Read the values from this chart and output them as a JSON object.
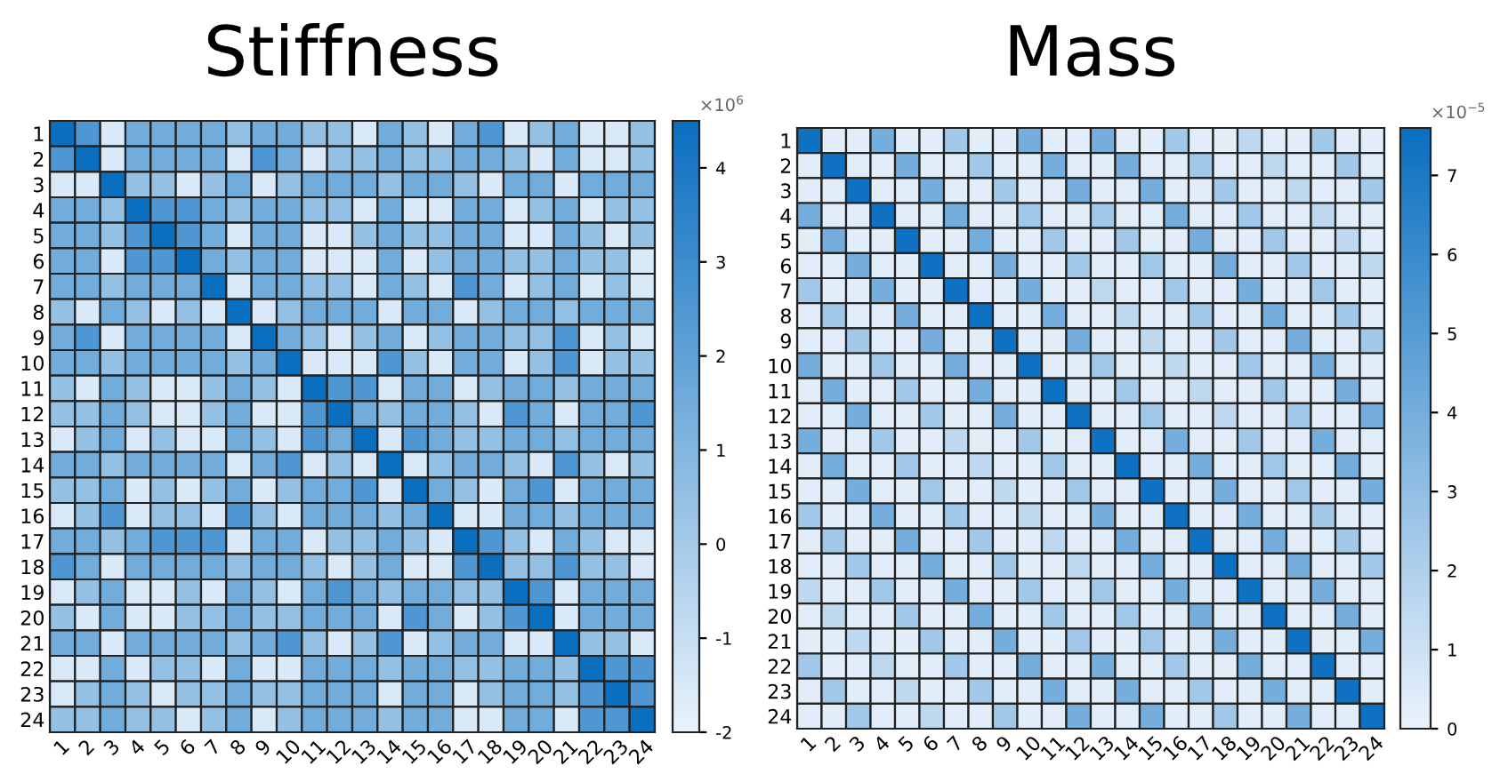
{
  "chart_data": [
    {
      "type": "heatmap",
      "title": "Stiffness",
      "clabel": "×10$^{6}$",
      "categories": [
        "1",
        "2",
        "3",
        "4",
        "5",
        "6",
        "7",
        "8",
        "9",
        "10",
        "11",
        "12",
        "13",
        "14",
        "15",
        "16",
        "17",
        "18",
        "19",
        "20",
        "21",
        "22",
        "23",
        "24"
      ],
      "y_categories": [
        "1",
        "2",
        "3",
        "4",
        "5",
        "6",
        "7",
        "8",
        "9",
        "10",
        "11",
        "12",
        "13",
        "14",
        "15",
        "16",
        "17",
        "18",
        "19",
        "20",
        "21",
        "22",
        "23",
        "24"
      ],
      "clim": [
        -2,
        4.5
      ],
      "cticks": [
        -2,
        -1,
        0,
        1,
        2,
        3,
        4
      ],
      "cells": [
        [
          4.5,
          2.5,
          -1.5,
          1.5,
          1.5,
          1.5,
          1.5,
          0.5,
          1.5,
          1.5,
          0.5,
          0.5,
          -1.5,
          1.5,
          0.5,
          -1.5,
          1.5,
          2.5,
          -1.5,
          0.5,
          1.5,
          -1.5,
          -1.5,
          0.5
        ],
        [
          2.5,
          4.5,
          -1.5,
          1.5,
          1.5,
          1.5,
          1.5,
          -1.5,
          2.5,
          1.5,
          -1.5,
          0.5,
          0.5,
          1.5,
          0.5,
          0.5,
          1.5,
          1.5,
          0.5,
          -1.5,
          1.5,
          -1.5,
          -1.5,
          0.5
        ],
        [
          -1.5,
          -1.5,
          4.5,
          0.5,
          0.5,
          -1.5,
          0.5,
          1.5,
          -1.5,
          0.5,
          1.5,
          1.5,
          1.5,
          0.5,
          1.5,
          1.5,
          0.5,
          -1.5,
          1.5,
          1.5,
          -1.5,
          1.5,
          1.5,
          1.5
        ],
        [
          1.5,
          1.5,
          0.5,
          4.5,
          2.5,
          2.5,
          1.5,
          0.5,
          1.5,
          1.5,
          0.5,
          0.5,
          -1.5,
          1.5,
          -1.5,
          -1.5,
          1.5,
          1.5,
          -1.5,
          0.5,
          1.5,
          -1.5,
          0.5,
          0.5
        ],
        [
          1.5,
          1.5,
          0.5,
          2.5,
          4.5,
          2.5,
          1.5,
          -1.5,
          1.5,
          1.5,
          -1.5,
          -1.5,
          0.5,
          1.5,
          0.5,
          0.5,
          1.5,
          1.5,
          -1.5,
          -1.5,
          1.5,
          0.5,
          -1.5,
          0.5
        ],
        [
          1.5,
          1.5,
          -1.5,
          2.5,
          2.5,
          4.5,
          1.5,
          0.5,
          1.5,
          1.5,
          -1.5,
          -1.5,
          -1.5,
          1.5,
          -1.5,
          0.5,
          1.5,
          1.5,
          0.5,
          0.5,
          1.5,
          0.5,
          0.5,
          -1.5
        ],
        [
          1.5,
          1.5,
          0.5,
          1.5,
          1.5,
          1.5,
          4.5,
          -1.5,
          1.5,
          1.5,
          0.5,
          0.5,
          -1.5,
          1.5,
          0.5,
          -1.5,
          2.5,
          1.5,
          -1.5,
          0.5,
          1.5,
          -1.5,
          0.5,
          -1.5
        ],
        [
          0.5,
          -1.5,
          1.5,
          0.5,
          -1.5,
          0.5,
          -1.5,
          4.5,
          -1.5,
          0.5,
          1.5,
          1.5,
          1.5,
          -1.5,
          1.5,
          1.5,
          -1.5,
          0.5,
          1.5,
          1.5,
          0.5,
          1.5,
          1.5,
          1.5
        ],
        [
          1.5,
          2.5,
          -1.5,
          1.5,
          1.5,
          1.5,
          1.5,
          -1.5,
          4.5,
          1.5,
          0.5,
          -1.5,
          0.5,
          1.5,
          -1.5,
          0.5,
          1.5,
          1.5,
          0.5,
          0.5,
          2.5,
          -1.5,
          0.5,
          -1.5
        ],
        [
          1.5,
          1.5,
          0.5,
          1.5,
          1.5,
          1.5,
          1.5,
          0.5,
          1.5,
          4.5,
          -1.5,
          -1.5,
          -1.5,
          2.5,
          0.5,
          -1.5,
          1.5,
          1.5,
          -1.5,
          0.5,
          2.5,
          -1.5,
          0.5,
          0.5
        ],
        [
          0.5,
          -1.5,
          1.5,
          0.5,
          -1.5,
          -1.5,
          0.5,
          1.5,
          0.5,
          -1.5,
          4.5,
          2.5,
          2.5,
          -1.5,
          1.5,
          1.5,
          -1.5,
          0.5,
          1.5,
          1.5,
          0.5,
          1.5,
          1.5,
          1.5
        ],
        [
          0.5,
          0.5,
          1.5,
          0.5,
          -1.5,
          -1.5,
          0.5,
          1.5,
          -1.5,
          -1.5,
          2.5,
          4.5,
          1.5,
          0.5,
          1.5,
          1.5,
          0.5,
          -1.5,
          2.5,
          1.5,
          -1.5,
          1.5,
          1.5,
          2.5
        ],
        [
          -1.5,
          0.5,
          1.5,
          -1.5,
          0.5,
          -1.5,
          -1.5,
          1.5,
          0.5,
          -1.5,
          2.5,
          1.5,
          4.5,
          -1.5,
          2.5,
          1.5,
          0.5,
          0.5,
          1.5,
          1.5,
          0.5,
          1.5,
          1.5,
          1.5
        ],
        [
          1.5,
          1.5,
          0.5,
          1.5,
          1.5,
          1.5,
          1.5,
          -1.5,
          1.5,
          2.5,
          -1.5,
          0.5,
          -1.5,
          4.5,
          -1.5,
          0.5,
          1.5,
          1.5,
          0.5,
          -1.5,
          2.5,
          0.5,
          -1.5,
          0.5
        ],
        [
          0.5,
          0.5,
          1.5,
          -1.5,
          0.5,
          -1.5,
          0.5,
          1.5,
          -1.5,
          0.5,
          1.5,
          1.5,
          2.5,
          -1.5,
          4.5,
          1.5,
          0.5,
          -1.5,
          1.5,
          2.5,
          -1.5,
          1.5,
          1.5,
          1.5
        ],
        [
          -1.5,
          0.5,
          2.5,
          -1.5,
          0.5,
          0.5,
          -1.5,
          2.5,
          0.5,
          -1.5,
          1.5,
          1.5,
          1.5,
          0.5,
          1.5,
          4.5,
          -1.5,
          -1.5,
          1.5,
          1.5,
          0.5,
          1.5,
          1.5,
          1.5
        ],
        [
          1.5,
          1.5,
          0.5,
          1.5,
          2.5,
          2.5,
          2.5,
          -1.5,
          1.5,
          1.5,
          -1.5,
          0.5,
          0.5,
          1.5,
          0.5,
          -1.5,
          4.5,
          2.5,
          0.5,
          -1.5,
          1.5,
          0.5,
          -1.5,
          -1.5
        ],
        [
          2.5,
          1.5,
          -1.5,
          1.5,
          1.5,
          1.5,
          1.5,
          0.5,
          1.5,
          1.5,
          0.5,
          -1.5,
          0.5,
          1.5,
          -1.5,
          -1.5,
          2.5,
          4.5,
          0.5,
          0.5,
          2.5,
          0.5,
          0.5,
          -1.5
        ],
        [
          -1.5,
          0.5,
          1.5,
          -1.5,
          -1.5,
          0.5,
          -1.5,
          1.5,
          0.5,
          -1.5,
          1.5,
          2.5,
          1.5,
          0.5,
          1.5,
          1.5,
          0.5,
          0.5,
          4.5,
          2.5,
          -1.5,
          1.5,
          1.5,
          1.5
        ],
        [
          0.5,
          -1.5,
          1.5,
          -1.5,
          -1.5,
          0.5,
          0.5,
          1.5,
          0.5,
          0.5,
          1.5,
          1.5,
          1.5,
          -1.5,
          2.5,
          1.5,
          -1.5,
          0.5,
          2.5,
          4.5,
          -1.5,
          1.5,
          1.5,
          1.5
        ],
        [
          1.5,
          1.5,
          -1.5,
          1.5,
          1.5,
          1.5,
          1.5,
          0.5,
          1.5,
          2.5,
          0.5,
          -1.5,
          0.5,
          2.5,
          -1.5,
          0.5,
          1.5,
          1.5,
          -1.5,
          -1.5,
          4.5,
          0.5,
          0.5,
          -1.5
        ],
        [
          -1.5,
          -1.5,
          1.5,
          -1.5,
          0.5,
          0.5,
          -1.5,
          1.5,
          -1.5,
          -1.5,
          1.5,
          1.5,
          1.5,
          0.5,
          1.5,
          1.5,
          0.5,
          0.5,
          1.5,
          1.5,
          0.5,
          4.5,
          2.5,
          2.5
        ],
        [
          -1.5,
          0.5,
          1.5,
          0.5,
          -1.5,
          0.5,
          0.5,
          1.5,
          0.5,
          0.5,
          1.5,
          1.5,
          1.5,
          -1.5,
          1.5,
          1.5,
          -1.5,
          0.5,
          1.5,
          1.5,
          0.5,
          2.5,
          4.5,
          2.5
        ],
        [
          0.5,
          0.5,
          1.5,
          0.5,
          0.5,
          -1.5,
          0.5,
          1.5,
          -1.5,
          0.5,
          1.5,
          1.5,
          1.5,
          0.5,
          1.5,
          1.5,
          -1.5,
          -1.5,
          1.5,
          1.5,
          -1.5,
          2.5,
          2.5,
          4.5
        ]
      ]
    },
    {
      "type": "heatmap",
      "title": "Mass",
      "clabel": "×10$^{−5}$",
      "categories": [
        "1",
        "2",
        "3",
        "4",
        "5",
        "6",
        "7",
        "8",
        "9",
        "10",
        "11",
        "12",
        "13",
        "14",
        "15",
        "16",
        "17",
        "18",
        "19",
        "20",
        "21",
        "22",
        "23",
        "24"
      ],
      "y_categories": [
        "1",
        "2",
        "3",
        "4",
        "5",
        "6",
        "7",
        "8",
        "9",
        "10",
        "11",
        "12",
        "13",
        "14",
        "15",
        "16",
        "17",
        "18",
        "19",
        "20",
        "21",
        "22",
        "23",
        "24"
      ],
      "clim": [
        0,
        7.6
      ],
      "cticks": [
        0,
        1,
        2,
        3,
        4,
        5,
        6,
        7
      ],
      "cells": [
        [
          7.5,
          0.3,
          0.3,
          4,
          0.3,
          0.3,
          2.5,
          0.3,
          0.3,
          4,
          0.3,
          0.3,
          4,
          0.3,
          0.3,
          2.5,
          0.3,
          0.3,
          1.5,
          0.3,
          0.3,
          2.5,
          0.3,
          0.3
        ],
        [
          0.3,
          7.5,
          0.3,
          0.3,
          4,
          0.3,
          0.3,
          2.5,
          0.3,
          0.3,
          4,
          0.3,
          0.3,
          4,
          0.3,
          0.3,
          2.5,
          0.3,
          0.3,
          1.5,
          0.3,
          0.3,
          2.5,
          0.3
        ],
        [
          0.3,
          0.3,
          7.5,
          0.3,
          0.3,
          4,
          0.3,
          0.3,
          2.5,
          0.3,
          0.3,
          4,
          0.3,
          0.3,
          4,
          0.3,
          0.3,
          2.5,
          0.3,
          0.3,
          1.5,
          0.3,
          0.3,
          2.5
        ],
        [
          4,
          0.3,
          0.3,
          7.5,
          0.3,
          0.3,
          4,
          0.3,
          0.3,
          2.5,
          0.3,
          0.3,
          2.5,
          0.3,
          0.3,
          4,
          0.3,
          0.3,
          2.5,
          0.3,
          0.3,
          1.5,
          0.3,
          0.3
        ],
        [
          0.3,
          4,
          0.3,
          0.3,
          7.5,
          0.3,
          0.3,
          4,
          0.3,
          0.3,
          2.5,
          0.3,
          0.3,
          2.5,
          0.3,
          0.3,
          4,
          0.3,
          0.3,
          2.5,
          0.3,
          0.3,
          1.5,
          0.3
        ],
        [
          0.3,
          0.3,
          4,
          0.3,
          0.3,
          7.5,
          0.3,
          0.3,
          4,
          0.3,
          0.3,
          2.5,
          0.3,
          0.3,
          2.5,
          0.3,
          0.3,
          4,
          0.3,
          0.3,
          2.5,
          0.3,
          0.3,
          1.5
        ],
        [
          2.5,
          0.3,
          0.3,
          4,
          0.3,
          0.3,
          7.5,
          0.3,
          0.3,
          4,
          0.3,
          0.3,
          1.5,
          0.3,
          0.3,
          2.5,
          0.3,
          0.3,
          4,
          0.3,
          0.3,
          2.5,
          0.3,
          0.3
        ],
        [
          0.3,
          2.5,
          0.3,
          0.3,
          4,
          0.3,
          0.3,
          7.5,
          0.3,
          0.3,
          4,
          0.3,
          0.3,
          1.5,
          0.3,
          0.3,
          2.5,
          0.3,
          0.3,
          4,
          0.3,
          0.3,
          2.5,
          0.3
        ],
        [
          0.3,
          0.3,
          2.5,
          0.3,
          0.3,
          4,
          0.3,
          0.3,
          7.5,
          0.3,
          0.3,
          4,
          0.3,
          0.3,
          1.5,
          0.3,
          0.3,
          2.5,
          0.3,
          0.3,
          4,
          0.3,
          0.3,
          2.5
        ],
        [
          4,
          0.3,
          0.3,
          2.5,
          0.3,
          0.3,
          4,
          0.3,
          0.3,
          7.5,
          0.3,
          0.3,
          2.5,
          0.3,
          0.3,
          1.5,
          0.3,
          0.3,
          2.5,
          0.3,
          0.3,
          4,
          0.3,
          0.3
        ],
        [
          0.3,
          4,
          0.3,
          0.3,
          2.5,
          0.3,
          0.3,
          4,
          0.3,
          0.3,
          7.5,
          0.3,
          0.3,
          2.5,
          0.3,
          0.3,
          1.5,
          0.3,
          0.3,
          2.5,
          0.3,
          0.3,
          4,
          0.3
        ],
        [
          0.3,
          0.3,
          4,
          0.3,
          0.3,
          2.5,
          0.3,
          0.3,
          4,
          0.3,
          0.3,
          7.5,
          0.3,
          0.3,
          2.5,
          0.3,
          0.3,
          1.5,
          0.3,
          0.3,
          2.5,
          0.3,
          0.3,
          4
        ],
        [
          4,
          0.3,
          0.3,
          2.5,
          0.3,
          0.3,
          1.5,
          0.3,
          0.3,
          2.5,
          0.3,
          0.3,
          7.5,
          0.3,
          0.3,
          4,
          0.3,
          0.3,
          2.5,
          0.3,
          0.3,
          4,
          0.3,
          0.3
        ],
        [
          0.3,
          4,
          0.3,
          0.3,
          2.5,
          0.3,
          0.3,
          1.5,
          0.3,
          0.3,
          2.5,
          0.3,
          0.3,
          7.5,
          0.3,
          0.3,
          4,
          0.3,
          0.3,
          2.5,
          0.3,
          0.3,
          4,
          0.3
        ],
        [
          0.3,
          0.3,
          4,
          0.3,
          0.3,
          2.5,
          0.3,
          0.3,
          1.5,
          0.3,
          0.3,
          2.5,
          0.3,
          0.3,
          7.5,
          0.3,
          0.3,
          4,
          0.3,
          0.3,
          2.5,
          0.3,
          0.3,
          4
        ],
        [
          2.5,
          0.3,
          0.3,
          4,
          0.3,
          0.3,
          2.5,
          0.3,
          0.3,
          1.5,
          0.3,
          0.3,
          4,
          0.3,
          0.3,
          7.5,
          0.3,
          0.3,
          4,
          0.3,
          0.3,
          2.5,
          0.3,
          0.3
        ],
        [
          0.3,
          2.5,
          0.3,
          0.3,
          4,
          0.3,
          0.3,
          2.5,
          0.3,
          0.3,
          1.5,
          0.3,
          0.3,
          4,
          0.3,
          0.3,
          7.5,
          0.3,
          0.3,
          4,
          0.3,
          0.3,
          2.5,
          0.3
        ],
        [
          0.3,
          0.3,
          2.5,
          0.3,
          0.3,
          4,
          0.3,
          0.3,
          2.5,
          0.3,
          0.3,
          1.5,
          0.3,
          0.3,
          4,
          0.3,
          0.3,
          7.5,
          0.3,
          0.3,
          4,
          0.3,
          0.3,
          2.5
        ],
        [
          1.5,
          0.3,
          0.3,
          2.5,
          0.3,
          0.3,
          4,
          0.3,
          0.3,
          2.5,
          0.3,
          0.3,
          2.5,
          0.3,
          0.3,
          4,
          0.3,
          0.3,
          7.5,
          0.3,
          0.3,
          4,
          0.3,
          0.3
        ],
        [
          0.3,
          1.5,
          0.3,
          0.3,
          2.5,
          0.3,
          0.3,
          4,
          0.3,
          0.3,
          2.5,
          0.3,
          0.3,
          2.5,
          0.3,
          0.3,
          4,
          0.3,
          0.3,
          7.5,
          0.3,
          0.3,
          4,
          0.3
        ],
        [
          0.3,
          0.3,
          1.5,
          0.3,
          0.3,
          2.5,
          0.3,
          0.3,
          4,
          0.3,
          0.3,
          2.5,
          0.3,
          0.3,
          2.5,
          0.3,
          0.3,
          4,
          0.3,
          0.3,
          7.5,
          0.3,
          0.3,
          4
        ],
        [
          2.5,
          0.3,
          0.3,
          1.5,
          0.3,
          0.3,
          2.5,
          0.3,
          0.3,
          4,
          0.3,
          0.3,
          4,
          0.3,
          0.3,
          2.5,
          0.3,
          0.3,
          4,
          0.3,
          0.3,
          7.5,
          0.3,
          0.3
        ],
        [
          0.3,
          2.5,
          0.3,
          0.3,
          1.5,
          0.3,
          0.3,
          2.5,
          0.3,
          0.3,
          4,
          0.3,
          0.3,
          4,
          0.3,
          0.3,
          2.5,
          0.3,
          0.3,
          4,
          0.3,
          0.3,
          7.5,
          0.3
        ],
        [
          0.3,
          0.3,
          2.5,
          0.3,
          0.3,
          1.5,
          0.3,
          0.3,
          2.5,
          0.3,
          0.3,
          4,
          0.3,
          0.3,
          4,
          0.3,
          0.3,
          2.5,
          0.3,
          0.3,
          4,
          0.3,
          0.3,
          7.5
        ]
      ]
    }
  ]
}
